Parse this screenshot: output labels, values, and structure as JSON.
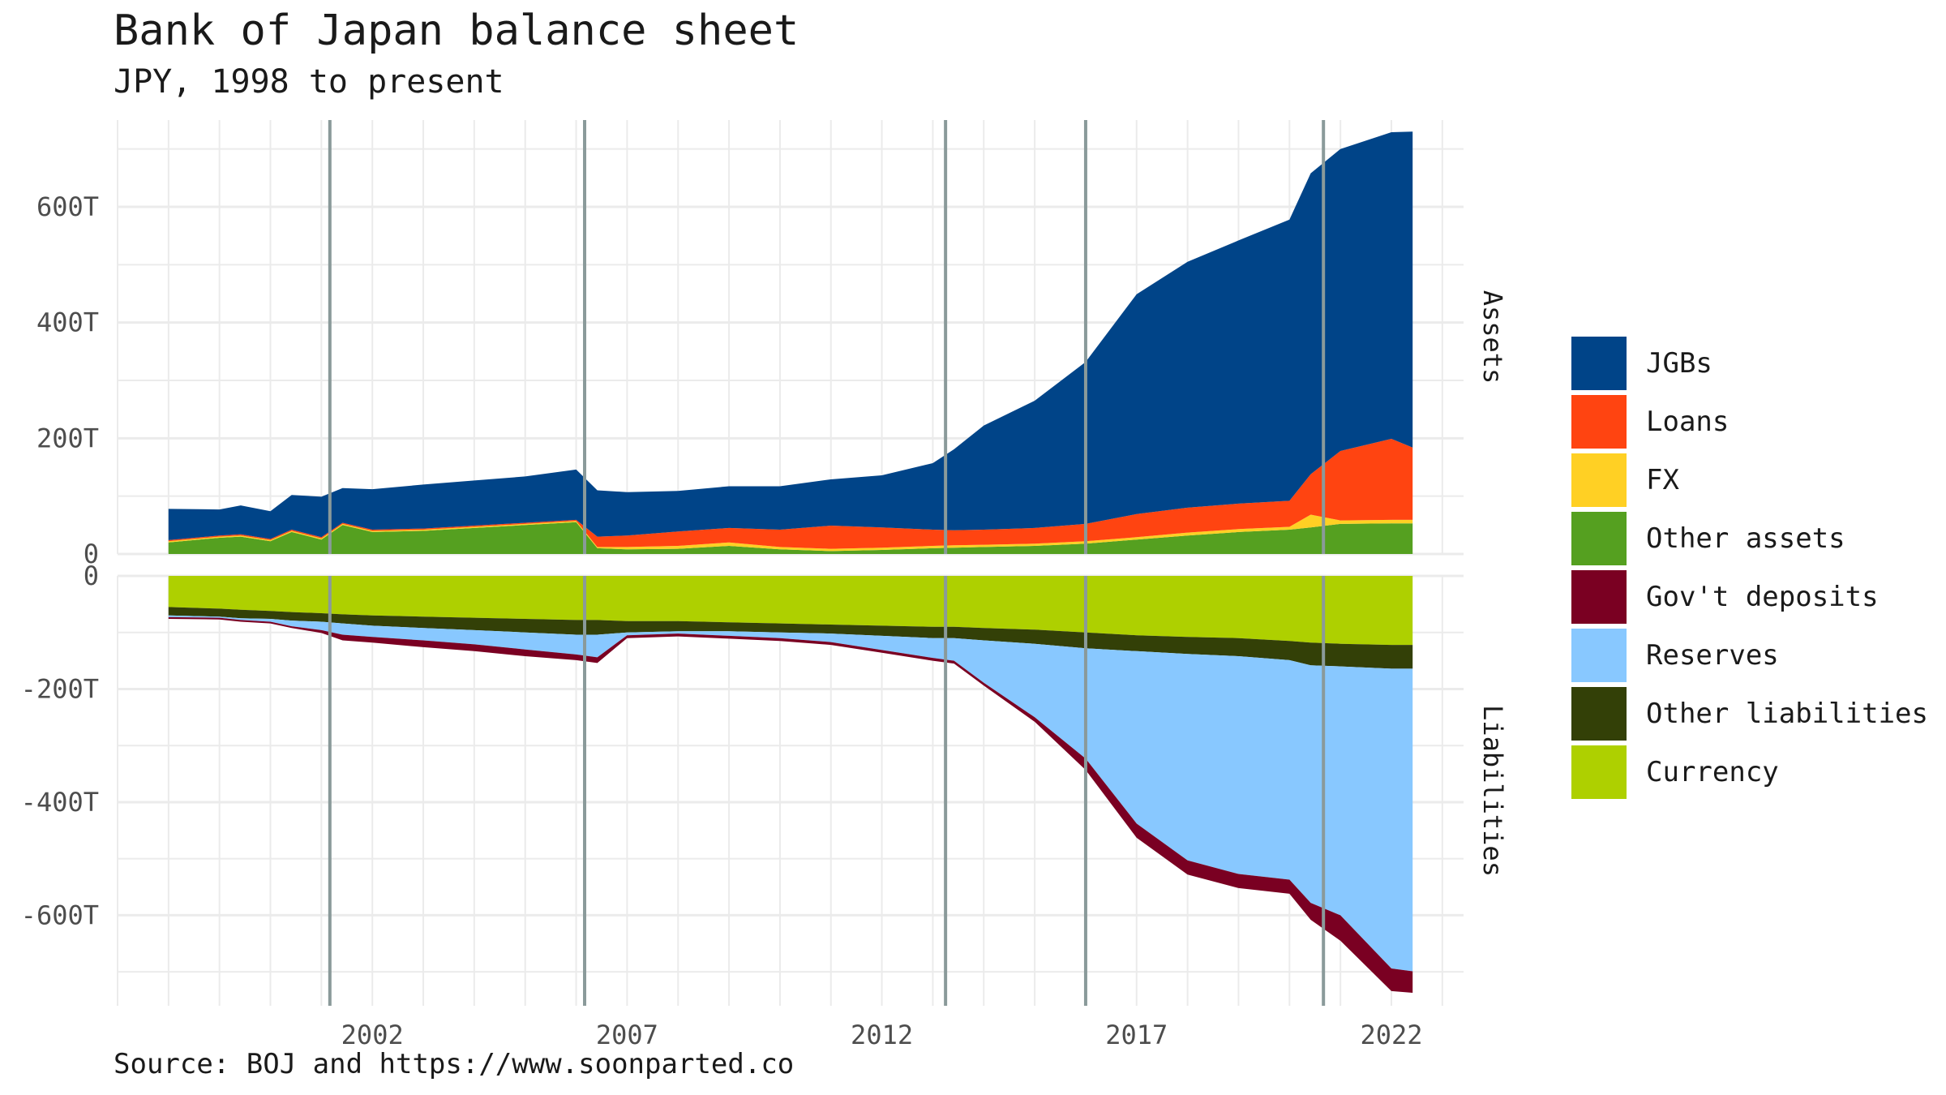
{
  "title": "Bank of Japan balance sheet",
  "subtitle": "JPY, 1998 to present",
  "caption": "Source: BOJ and https://www.soonparted.co",
  "chart_data": {
    "type": "area",
    "stacked": true,
    "facets": [
      "Assets",
      "Liabilities"
    ],
    "x_axis": {
      "type": "date",
      "range": [
        "1997-01",
        "2023-06"
      ],
      "ticks": [
        "2002",
        "2007",
        "2012",
        "2017",
        "2022"
      ]
    },
    "assets_axis": {
      "ylim": [
        0,
        750
      ],
      "ticks": [
        "0",
        "200T",
        "400T",
        "600T"
      ]
    },
    "liabilities_axis": {
      "ylim": [
        -760,
        0
      ],
      "ticks": [
        "0",
        "-200T",
        "-400T",
        "-600T"
      ]
    },
    "grid": true,
    "legend_position": "right",
    "legend": [
      {
        "name": "JGBs",
        "color": "#004488"
      },
      {
        "name": "Loans",
        "color": "#ff4411"
      },
      {
        "name": "FX",
        "color": "#ffd024"
      },
      {
        "name": "Other assets",
        "color": "#55a020"
      },
      {
        "name": "Gov't deposits",
        "color": "#7a0022"
      },
      {
        "name": "Reserves",
        "color": "#88c8ff"
      },
      {
        "name": "Other liabilities",
        "color": "#334007"
      },
      {
        "name": "Currency",
        "color": "#aed000"
      }
    ],
    "event_markers": [
      "2001-03",
      "2006-03",
      "2013-04",
      "2016-01",
      "2020-09"
    ],
    "x": [
      "1998-01",
      "1999-01",
      "1999-06",
      "2000-01",
      "2000-06",
      "2001-01",
      "2001-06",
      "2002-01",
      "2003-01",
      "2004-01",
      "2005-01",
      "2006-01",
      "2006-06",
      "2007-01",
      "2008-01",
      "2009-01",
      "2010-01",
      "2011-01",
      "2012-01",
      "2013-01",
      "2013-06",
      "2014-01",
      "2015-01",
      "2016-01",
      "2017-01",
      "2018-01",
      "2019-01",
      "2020-01",
      "2020-06",
      "2021-01",
      "2022-01",
      "2022-06"
    ],
    "series": {
      "assets": [
        {
          "name": "Other assets",
          "values": [
            20,
            28,
            30,
            22,
            38,
            25,
            50,
            38,
            40,
            45,
            50,
            55,
            10,
            8,
            9,
            14,
            8,
            5,
            7,
            10,
            11,
            12,
            14,
            18,
            25,
            32,
            38,
            42,
            46,
            52,
            53,
            53
          ]
        },
        {
          "name": "FX",
          "values": [
            2,
            2,
            2,
            2,
            2,
            2,
            2,
            2,
            2,
            2,
            2,
            2,
            2,
            4,
            5,
            6,
            4,
            4,
            4,
            4,
            4,
            4,
            4,
            4,
            4,
            5,
            5,
            5,
            22,
            6,
            6,
            6
          ]
        },
        {
          "name": "Loans",
          "values": [
            2,
            2,
            2,
            2,
            2,
            2,
            2,
            2,
            2,
            2,
            2,
            2,
            18,
            20,
            25,
            25,
            30,
            40,
            35,
            28,
            26,
            26,
            27,
            30,
            40,
            43,
            44,
            45,
            70,
            120,
            140,
            125
          ]
        },
        {
          "name": "JGBs",
          "values": [
            54,
            45,
            50,
            48,
            60,
            70,
            60,
            70,
            76,
            78,
            80,
            87,
            80,
            75,
            70,
            72,
            75,
            80,
            90,
            115,
            140,
            180,
            220,
            280,
            380,
            425,
            455,
            486,
            520,
            522,
            530,
            546
          ]
        }
      ],
      "liabilities": [
        {
          "name": "Currency",
          "values": [
            -55,
            -58,
            -60,
            -62,
            -64,
            -66,
            -68,
            -70,
            -72,
            -74,
            -76,
            -78,
            -78,
            -80,
            -80,
            -82,
            -84,
            -86,
            -88,
            -90,
            -90,
            -92,
            -95,
            -100,
            -105,
            -108,
            -110,
            -115,
            -118,
            -120,
            -122,
            -122
          ]
        },
        {
          "name": "Other liabilities",
          "values": [
            -15,
            -14,
            -15,
            -14,
            -15,
            -15,
            -16,
            -18,
            -20,
            -22,
            -24,
            -26,
            -26,
            -20,
            -18,
            -16,
            -16,
            -16,
            -18,
            -20,
            -20,
            -22,
            -25,
            -28,
            -28,
            -30,
            -32,
            -34,
            -40,
            -40,
            -42,
            -42
          ]
        },
        {
          "name": "Reserves",
          "values": [
            -3,
            -2,
            -3,
            -5,
            -10,
            -15,
            -20,
            -20,
            -22,
            -25,
            -30,
            -35,
            -40,
            -5,
            -4,
            -8,
            -10,
            -15,
            -25,
            -35,
            -40,
            -75,
            -130,
            -195,
            -305,
            -365,
            -385,
            -388,
            -420,
            -440,
            -530,
            -535
          ]
        },
        {
          "name": "Gov't deposits",
          "values": [
            -3,
            -3,
            -3,
            -3,
            -3,
            -5,
            -10,
            -10,
            -12,
            -12,
            -12,
            -10,
            -10,
            -5,
            -5,
            -5,
            -5,
            -5,
            -5,
            -5,
            -5,
            -5,
            -8,
            -20,
            -25,
            -25,
            -25,
            -25,
            -30,
            -45,
            -40,
            -38
          ]
        }
      ]
    }
  }
}
